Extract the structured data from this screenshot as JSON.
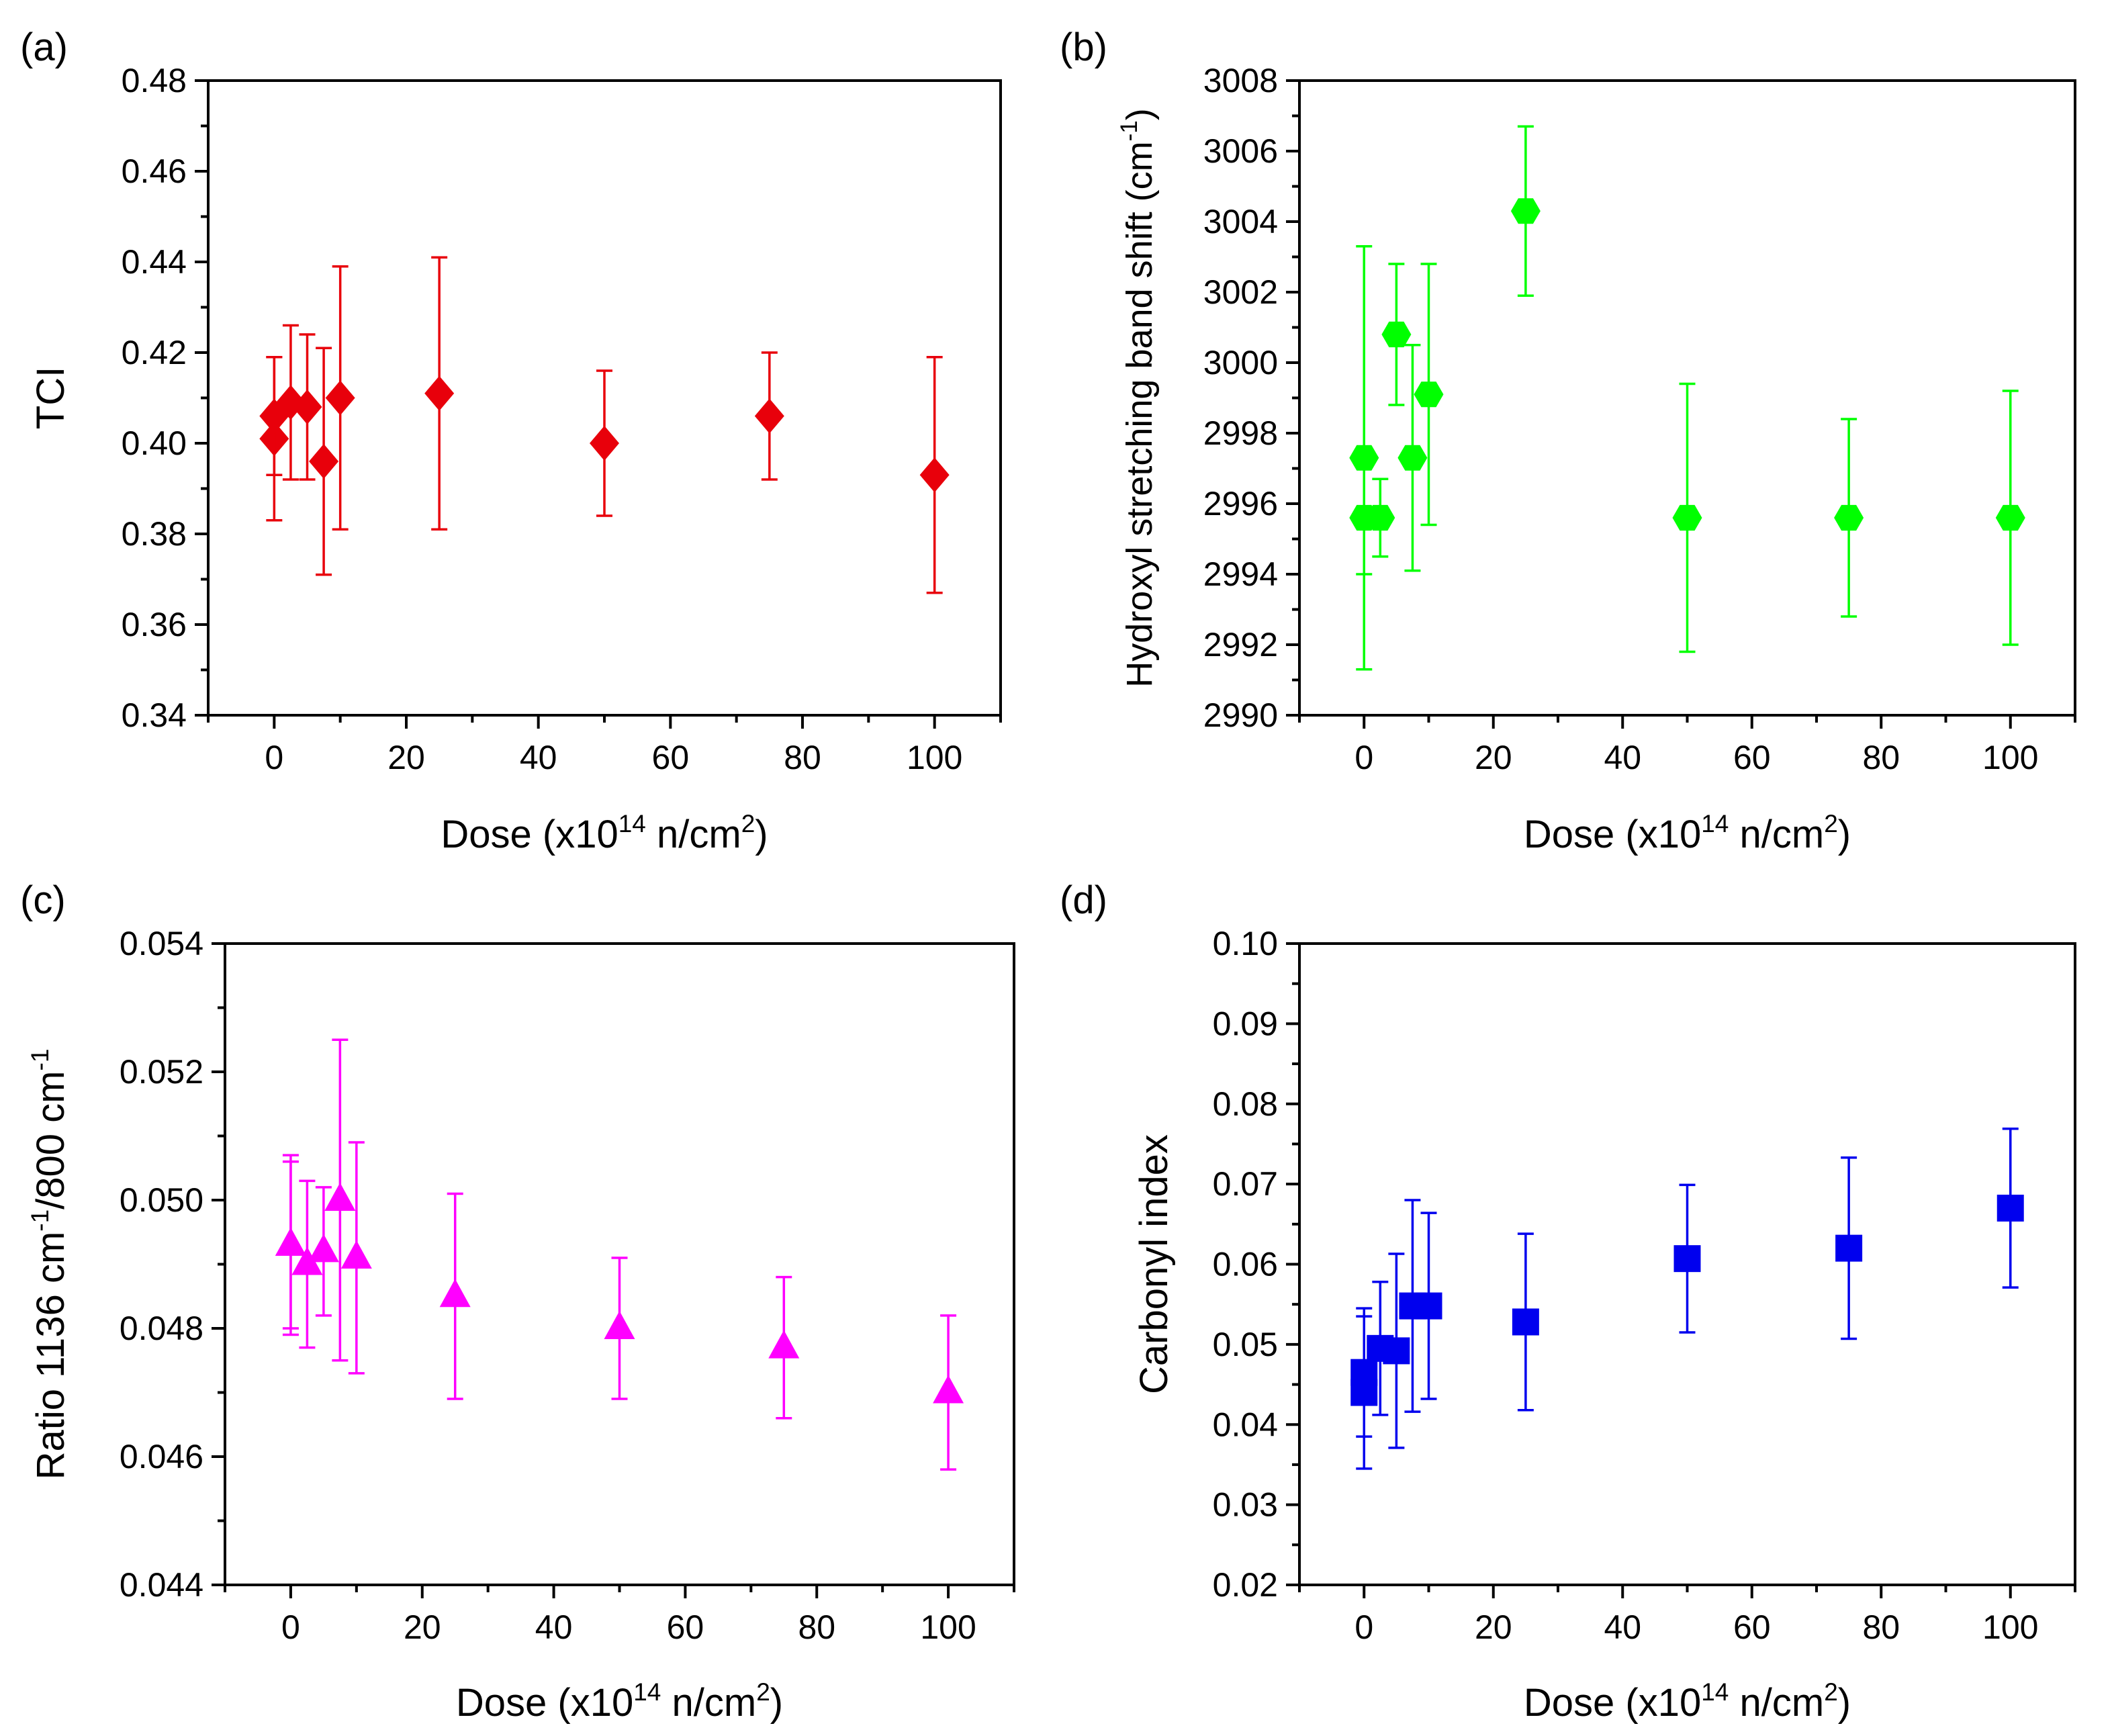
{
  "chart_data": [
    {
      "panel": "(a)",
      "type": "scatter",
      "marker": "diamond",
      "color": "#e8000b",
      "xlabel": "Dose (x10{14} n/cm{2})",
      "ylabel": "TCI",
      "xlim": [
        -10,
        110
      ],
      "ylim": [
        0.34,
        0.48
      ],
      "xticks": [
        0,
        20,
        40,
        60,
        80,
        100
      ],
      "xtick_labels": [
        "0",
        "20",
        "40",
        "60",
        "80",
        "100"
      ],
      "yticks": [
        0.34,
        0.36,
        0.38,
        0.4,
        0.42,
        0.44,
        0.46,
        0.48
      ],
      "ytick_labels": [
        "0.34",
        "0.36",
        "0.38",
        "0.40",
        "0.42",
        "0.44",
        "0.46",
        "0.48"
      ],
      "points": [
        {
          "x": 0,
          "y": 0.401,
          "err": 0.018
        },
        {
          "x": 0,
          "y": 0.406,
          "err": 0.013
        },
        {
          "x": 2.5,
          "y": 0.409,
          "err": 0.017
        },
        {
          "x": 5,
          "y": 0.408,
          "err": 0.016
        },
        {
          "x": 7.5,
          "y": 0.396,
          "err": 0.025
        },
        {
          "x": 10,
          "y": 0.41,
          "err": 0.029
        },
        {
          "x": 25,
          "y": 0.411,
          "err": 0.03
        },
        {
          "x": 50,
          "y": 0.4,
          "err": 0.016
        },
        {
          "x": 75,
          "y": 0.406,
          "err": 0.014
        },
        {
          "x": 100,
          "y": 0.393,
          "err": 0.026
        }
      ]
    },
    {
      "panel": "(b)",
      "type": "scatter",
      "marker": "hexagon",
      "color": "#00ff00",
      "xlabel": "Dose (x10{14} n/cm{2})",
      "ylabel": "Hydroxyl stretching band shift (cm{-1})",
      "xlim": [
        -10,
        110
      ],
      "ylim": [
        2990,
        3008
      ],
      "xticks": [
        0,
        20,
        40,
        60,
        80,
        100
      ],
      "xtick_labels": [
        "0",
        "20",
        "40",
        "60",
        "80",
        "100"
      ],
      "yticks": [
        2990,
        2992,
        2994,
        2996,
        2998,
        3000,
        3002,
        3004,
        3006,
        3008
      ],
      "ytick_labels": [
        "2990",
        "2992",
        "2994",
        "2996",
        "2998",
        "3000",
        "3002",
        "3004",
        "3006",
        "3008"
      ],
      "points": [
        {
          "x": 0,
          "y": 2997.3,
          "err": 6.0
        },
        {
          "x": 0,
          "y": 2995.6,
          "err": 1.6
        },
        {
          "x": 2.5,
          "y": 2995.6,
          "err": 1.1
        },
        {
          "x": 5,
          "y": 3000.8,
          "err": 2.0
        },
        {
          "x": 7.5,
          "y": 2997.3,
          "err": 3.2
        },
        {
          "x": 10,
          "y": 2999.1,
          "err": 3.7
        },
        {
          "x": 25,
          "y": 3004.3,
          "err": 2.4
        },
        {
          "x": 50,
          "y": 2995.6,
          "err": 3.8
        },
        {
          "x": 75,
          "y": 2995.6,
          "err": 2.8
        },
        {
          "x": 100,
          "y": 2995.6,
          "err": 3.6
        }
      ]
    },
    {
      "panel": "(c)",
      "type": "scatter",
      "marker": "triangle",
      "color": "#ff00ff",
      "xlabel": "Dose (x10{14} n/cm{2})",
      "ylabel": "Ratio 1136 cm{-1}/800 cm{-1}",
      "xlim": [
        -10,
        110
      ],
      "ylim": [
        0.044,
        0.054
      ],
      "xticks": [
        0,
        20,
        40,
        60,
        80,
        100
      ],
      "xtick_labels": [
        "0",
        "20",
        "40",
        "60",
        "80",
        "100"
      ],
      "yticks": [
        0.044,
        0.046,
        0.048,
        0.05,
        0.052,
        0.054
      ],
      "ytick_labels": [
        "0.044",
        "0.046",
        "0.048",
        "0.050",
        "0.052",
        "0.054"
      ],
      "points": [
        {
          "x": 0,
          "y": 0.0493,
          "err": 0.0013
        },
        {
          "x": 0,
          "y": 0.0493,
          "err": 0.0014
        },
        {
          "x": 2.5,
          "y": 0.049,
          "err": 0.0013
        },
        {
          "x": 5,
          "y": 0.0492,
          "err": 0.001
        },
        {
          "x": 7.5,
          "y": 0.05,
          "err": 0.0025
        },
        {
          "x": 10,
          "y": 0.0491,
          "err": 0.0018
        },
        {
          "x": 25,
          "y": 0.0485,
          "err": 0.0016
        },
        {
          "x": 50,
          "y": 0.048,
          "err": 0.0011
        },
        {
          "x": 75,
          "y": 0.0477,
          "err": 0.0011
        },
        {
          "x": 100,
          "y": 0.047,
          "err": 0.0012
        }
      ]
    },
    {
      "panel": "(d)",
      "type": "scatter",
      "marker": "square",
      "color": "#0000ee",
      "xlabel": "Dose (x10{14} n/cm{2})",
      "ylabel": "Carbonyl index",
      "xlim": [
        -10,
        110
      ],
      "ylim": [
        0.02,
        0.1
      ],
      "xticks": [
        0,
        20,
        40,
        60,
        80,
        100
      ],
      "xtick_labels": [
        "0",
        "20",
        "40",
        "60",
        "80",
        "100"
      ],
      "yticks": [
        0.02,
        0.03,
        0.04,
        0.05,
        0.06,
        0.07,
        0.08,
        0.09,
        0.1
      ],
      "ytick_labels": [
        "0.02",
        "0.03",
        "0.04",
        "0.05",
        "0.06",
        "0.07",
        "0.08",
        "0.09",
        "0.10"
      ],
      "points": [
        {
          "x": 0,
          "y": 0.044,
          "err": 0.0095
        },
        {
          "x": 0,
          "y": 0.0465,
          "err": 0.008
        },
        {
          "x": 2.5,
          "y": 0.0495,
          "err": 0.0083
        },
        {
          "x": 5,
          "y": 0.0492,
          "err": 0.0121
        },
        {
          "x": 7.5,
          "y": 0.0548,
          "err": 0.0132
        },
        {
          "x": 10,
          "y": 0.0548,
          "err": 0.0116
        },
        {
          "x": 25,
          "y": 0.0528,
          "err": 0.011
        },
        {
          "x": 50,
          "y": 0.0607,
          "err": 0.0092
        },
        {
          "x": 75,
          "y": 0.062,
          "err": 0.0113
        },
        {
          "x": 100,
          "y": 0.067,
          "err": 0.0099
        }
      ]
    }
  ]
}
